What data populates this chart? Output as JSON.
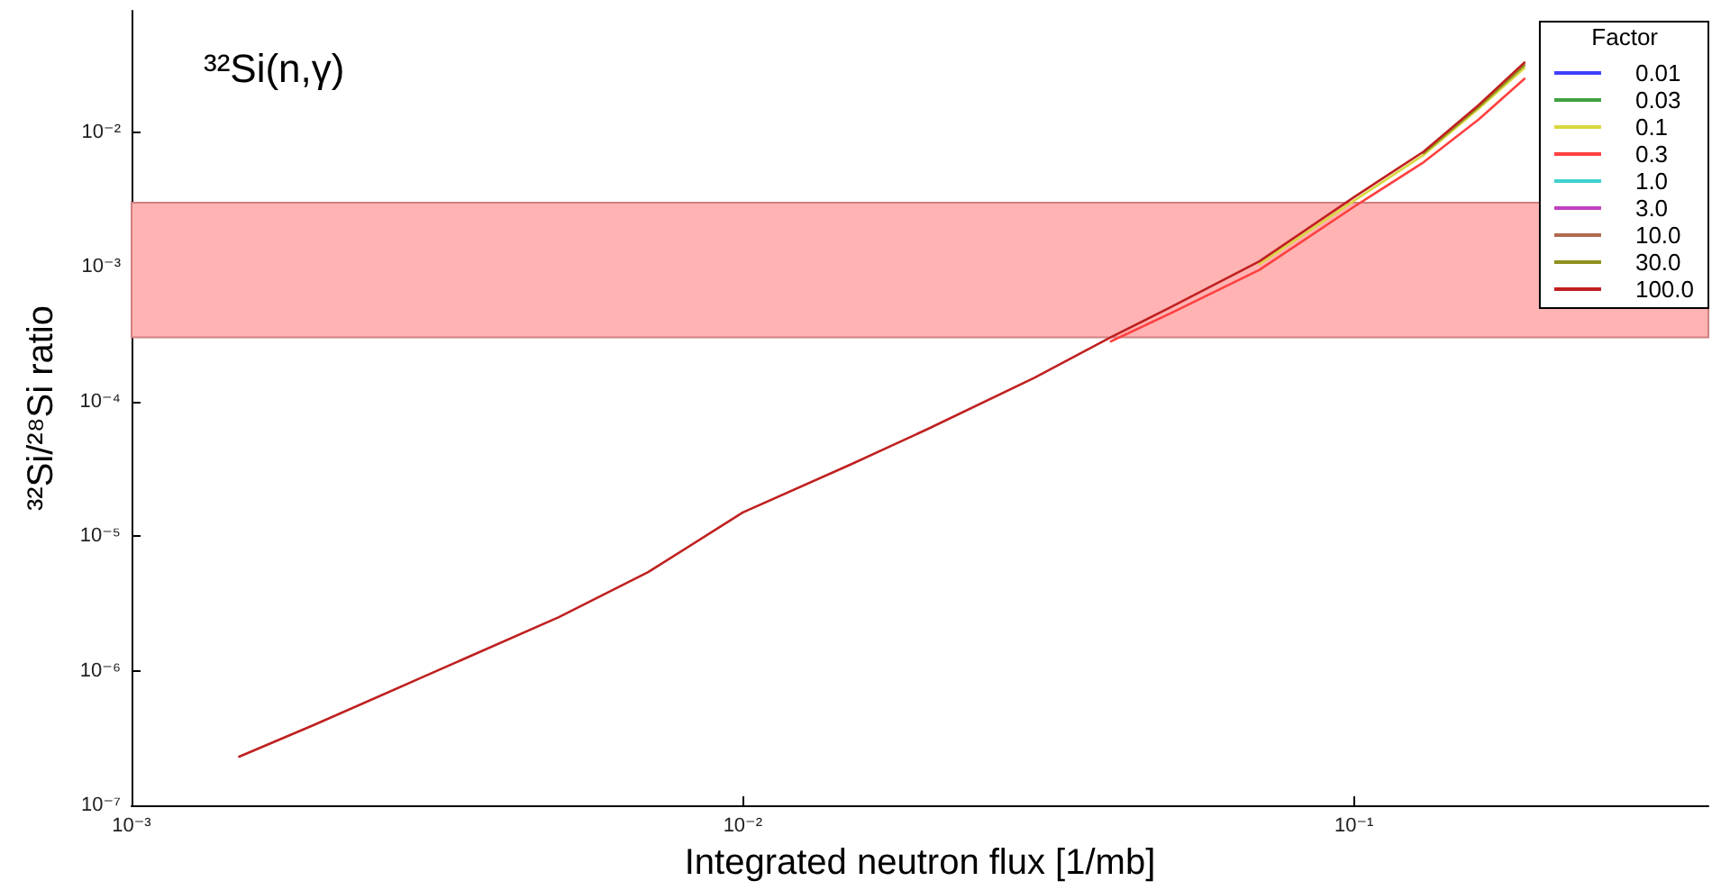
{
  "chart_data": {
    "type": "line",
    "title": "³²Si(n,γ)",
    "xlabel": "Integrated neutron flux [1/mb]",
    "ylabel": "³²Si/²⁸Si ratio",
    "legend_title": "Factor",
    "legend": "top right",
    "log": "xy",
    "grid": false,
    "marker": "none",
    "line_style": "solid",
    "xlim": [
      0.001,
      0.38
    ],
    "ylim": [
      1e-07,
      0.08
    ],
    "xticks": [
      {
        "value": 0.001,
        "label": "10⁻³"
      },
      {
        "value": 0.01,
        "label": "10⁻²"
      },
      {
        "value": 0.1,
        "label": "10⁻¹"
      }
    ],
    "yticks": [
      {
        "value": 1e-07,
        "label": "10⁻⁷"
      },
      {
        "value": 1e-06,
        "label": "10⁻⁶"
      },
      {
        "value": 1e-05,
        "label": "10⁻⁵"
      },
      {
        "value": 0.0001,
        "label": "10⁻⁴"
      },
      {
        "value": 0.001,
        "label": "10⁻³"
      },
      {
        "value": 0.01,
        "label": "10⁻²"
      }
    ],
    "bands": [
      {
        "axis": "y",
        "from": 0.0003,
        "to": 0.003,
        "color": "#ffb3b3"
      }
    ],
    "x": [
      0.0015,
      0.002,
      0.003,
      0.005,
      0.007,
      0.01,
      0.015,
      0.02,
      0.03,
      0.04,
      0.05,
      0.07,
      0.1,
      0.13,
      0.16,
      0.19
    ],
    "series": [
      {
        "name": "0.01",
        "color": "#4040ff",
        "values": [
          null,
          null,
          null,
          null,
          null,
          null,
          null,
          null,
          null,
          null,
          null,
          null,
          null,
          null,
          null,
          null
        ]
      },
      {
        "name": "0.03",
        "color": "#40a040",
        "values": [
          null,
          null,
          null,
          null,
          null,
          null,
          null,
          null,
          null,
          null,
          null,
          null,
          null,
          null,
          null,
          null
        ]
      },
      {
        "name": "0.1",
        "color": "#d8d840",
        "values": [
          null,
          null,
          null,
          null,
          null,
          null,
          null,
          null,
          null,
          null,
          null,
          0.00105,
          0.0031,
          0.0068,
          0.015,
          0.03
        ]
      },
      {
        "name": "0.3",
        "color": "#ff4040",
        "values": [
          null,
          null,
          null,
          null,
          null,
          null,
          null,
          null,
          null,
          0.00028,
          0.00045,
          0.00095,
          0.0028,
          0.006,
          0.0125,
          0.025
        ]
      },
      {
        "name": "1.0",
        "color": "#40d0d0",
        "values": [
          null,
          null,
          null,
          null,
          null,
          null,
          null,
          null,
          null,
          null,
          null,
          null,
          null,
          null,
          null,
          null
        ]
      },
      {
        "name": "3.0",
        "color": "#c040c0",
        "values": [
          null,
          null,
          null,
          null,
          null,
          null,
          null,
          null,
          null,
          null,
          null,
          null,
          null,
          null,
          null,
          null
        ]
      },
      {
        "name": "10.0",
        "color": "#b06a50",
        "values": [
          null,
          null,
          null,
          null,
          null,
          null,
          null,
          null,
          null,
          null,
          null,
          null,
          null,
          null,
          null,
          null
        ]
      },
      {
        "name": "30.0",
        "color": "#909020",
        "values": [
          null,
          null,
          null,
          null,
          null,
          null,
          null,
          null,
          null,
          null,
          null,
          null,
          null,
          0.007,
          0.0155,
          0.0315
        ]
      },
      {
        "name": "100.0",
        "color": "#c02020",
        "values": [
          2.3e-07,
          4e-07,
          9e-07,
          2.5e-06,
          5.4e-06,
          1.5e-05,
          3.4e-05,
          6.2e-05,
          0.00015,
          0.0003,
          0.0005,
          0.0011,
          0.0033,
          0.0072,
          0.016,
          0.033
        ]
      }
    ]
  }
}
